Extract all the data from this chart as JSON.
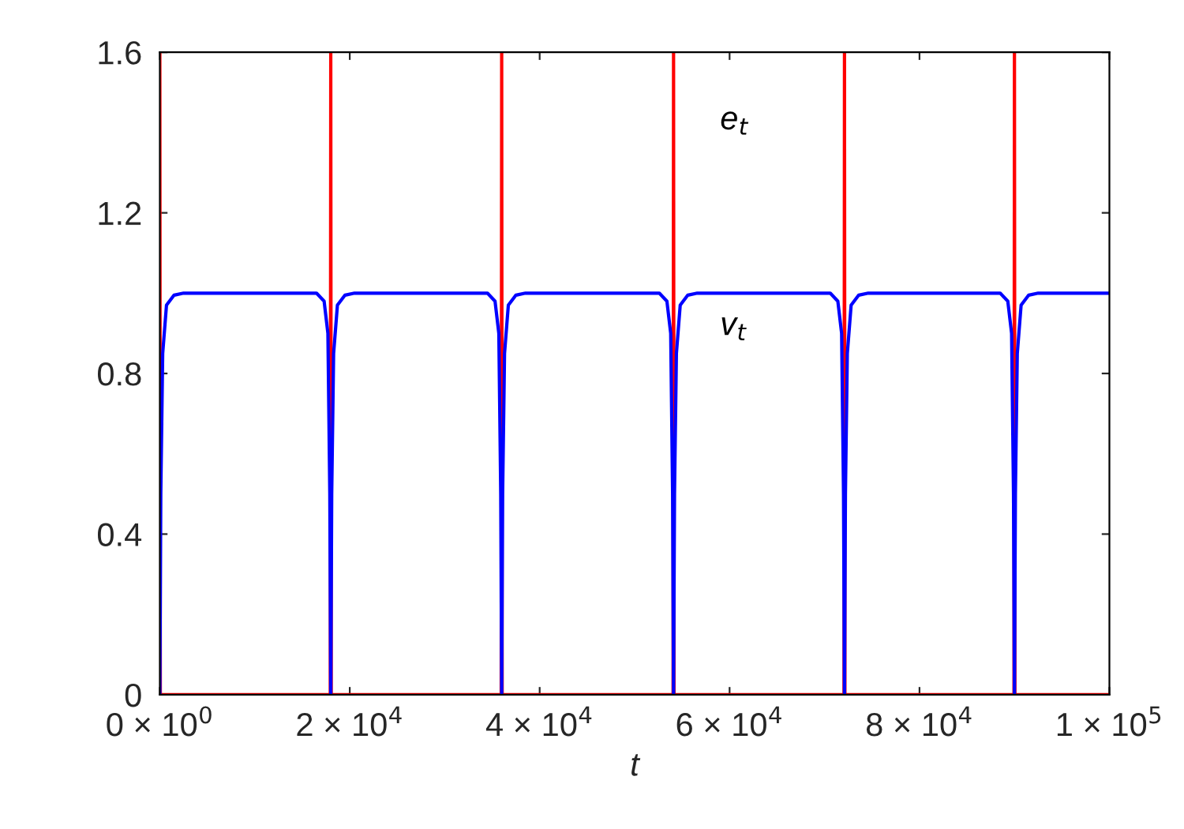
{
  "chart_data": {
    "type": "line",
    "xlabel": "t",
    "xlim": [
      0,
      100000
    ],
    "ylim": [
      0,
      1.6
    ],
    "xticks": [
      {
        "value": 0,
        "label": "0 × 10$^{0}$"
      },
      {
        "value": 20000,
        "label": "2 × 10$^{4}$"
      },
      {
        "value": 40000,
        "label": "4 × 10$^{4}$"
      },
      {
        "value": 60000,
        "label": "6 × 10$^{4}$"
      },
      {
        "value": 80000,
        "label": "8 × 10$^{4}$"
      },
      {
        "value": 100000,
        "label": "1 × 10$^{5}$"
      }
    ],
    "yticks": [
      0,
      {
        "value": 0.4,
        "label": "0.4"
      },
      {
        "value": 0.8,
        "label": "0.8"
      },
      {
        "value": 1.2,
        "label": "1.2"
      },
      {
        "value": 1.6,
        "label": "1.6"
      }
    ],
    "grid": false,
    "legend": false,
    "line_style": "solid",
    "marker": "none",
    "series": [
      {
        "name": "e$_{t}$",
        "color": "#ff0000",
        "x": [
          0,
          50,
          17950,
          18000,
          18050,
          35950,
          36000,
          36050,
          54050,
          54100,
          54150,
          72050,
          72100,
          72150,
          89950,
          90000,
          90050,
          100000
        ],
        "values": [
          1.6,
          0,
          0,
          1.6,
          0,
          0,
          1.6,
          0,
          0,
          1.6,
          0,
          0,
          1.6,
          0,
          0,
          1.6,
          0,
          0
        ]
      },
      {
        "name": "v$_{t}$",
        "color": "#0000ff",
        "x": [
          0,
          100,
          300,
          700,
          1500,
          2500,
          16500,
          17300,
          17700,
          17900,
          18000,
          18100,
          18300,
          18700,
          19500,
          20500,
          34500,
          35300,
          35700,
          35900,
          36000,
          36100,
          36300,
          36700,
          37500,
          38500,
          52600,
          53400,
          53800,
          54000,
          54100,
          54200,
          54400,
          54800,
          55600,
          56600,
          70600,
          71400,
          71800,
          72000,
          72100,
          72200,
          72400,
          72800,
          73600,
          74600,
          88500,
          89300,
          89700,
          89900,
          90000,
          90100,
          90300,
          90700,
          91500,
          92500,
          100000
        ],
        "values": [
          0,
          0.5,
          0.85,
          0.97,
          0.995,
          1,
          1,
          0.98,
          0.9,
          0.5,
          0,
          0.5,
          0.85,
          0.97,
          0.995,
          1,
          1,
          0.98,
          0.9,
          0.5,
          0,
          0.5,
          0.85,
          0.97,
          0.995,
          1,
          1,
          0.98,
          0.9,
          0.5,
          0,
          0.5,
          0.85,
          0.97,
          0.995,
          1,
          1,
          0.98,
          0.9,
          0.5,
          0,
          0.5,
          0.85,
          0.97,
          0.995,
          1,
          1,
          0.98,
          0.9,
          0.5,
          0,
          0.5,
          0.85,
          0.97,
          0.995,
          1,
          1
        ]
      }
    ]
  }
}
